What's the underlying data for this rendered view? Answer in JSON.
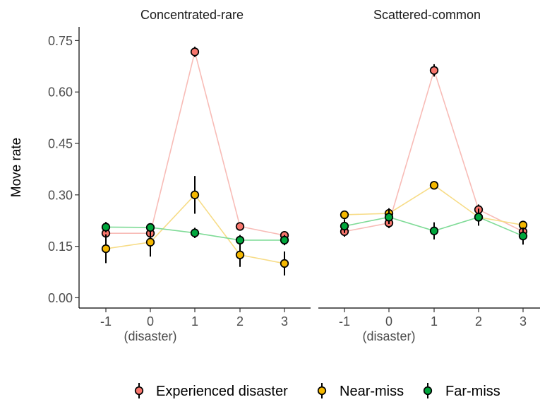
{
  "chart_data": {
    "type": "line",
    "ylabel": "Move rate",
    "xlabel": "",
    "ylim": [
      -0.03,
      0.79
    ],
    "yticks": [
      "0.00",
      "0.15",
      "0.30",
      "0.45",
      "0.60",
      "0.75"
    ],
    "x": [
      -1,
      0,
      1,
      2,
      3
    ],
    "xtick_labels": [
      "-1",
      "0",
      "1",
      "2",
      "3"
    ],
    "xtick_sublabel": "(disaster)",
    "legend_position": "bottom",
    "grid": false,
    "series_styles": [
      {
        "name": "Experienced disaster",
        "fill": "#f8766d",
        "line": "#f8bcb7"
      },
      {
        "name": "Near-miss",
        "fill": "#f5b800",
        "line": "#f7dc87"
      },
      {
        "name": "Far-miss",
        "fill": "#00a63c",
        "line": "#7fdb97"
      }
    ],
    "panels": [
      {
        "title": "Concentrated-rare",
        "series": [
          {
            "name": "Experienced disaster",
            "values": [
              0.188,
              0.188,
              0.717,
              0.208,
              0.182
            ],
            "err": [
              0.012,
              0.012,
              0.015,
              0.01,
              0.012
            ]
          },
          {
            "name": "Near-miss",
            "values": [
              0.143,
              0.162,
              0.3,
              0.125,
              0.1
            ],
            "err": [
              0.042,
              0.042,
              0.055,
              0.035,
              0.035
            ]
          },
          {
            "name": "Far-miss",
            "values": [
              0.206,
              0.205,
              0.189,
              0.168,
              0.168
            ],
            "err": [
              0.015,
              0.012,
              0.015,
              0.015,
              0.015
            ]
          }
        ]
      },
      {
        "title": "Scattered-common",
        "series": [
          {
            "name": "Experienced disaster",
            "values": [
              0.193,
              0.218,
              0.663,
              0.257,
              0.193
            ],
            "err": [
              0.015,
              0.015,
              0.018,
              0.015,
              0.015
            ]
          },
          {
            "name": "Near-miss",
            "values": [
              0.242,
              0.246,
              0.328,
              0.235,
              0.212
            ],
            "err": [
              0.012,
              0.015,
              0.012,
              0.012,
              0.012
            ]
          },
          {
            "name": "Far-miss",
            "values": [
              0.209,
              0.235,
              0.195,
              0.235,
              0.18
            ],
            "err": [
              0.02,
              0.02,
              0.025,
              0.025,
              0.025
            ]
          }
        ]
      }
    ]
  }
}
